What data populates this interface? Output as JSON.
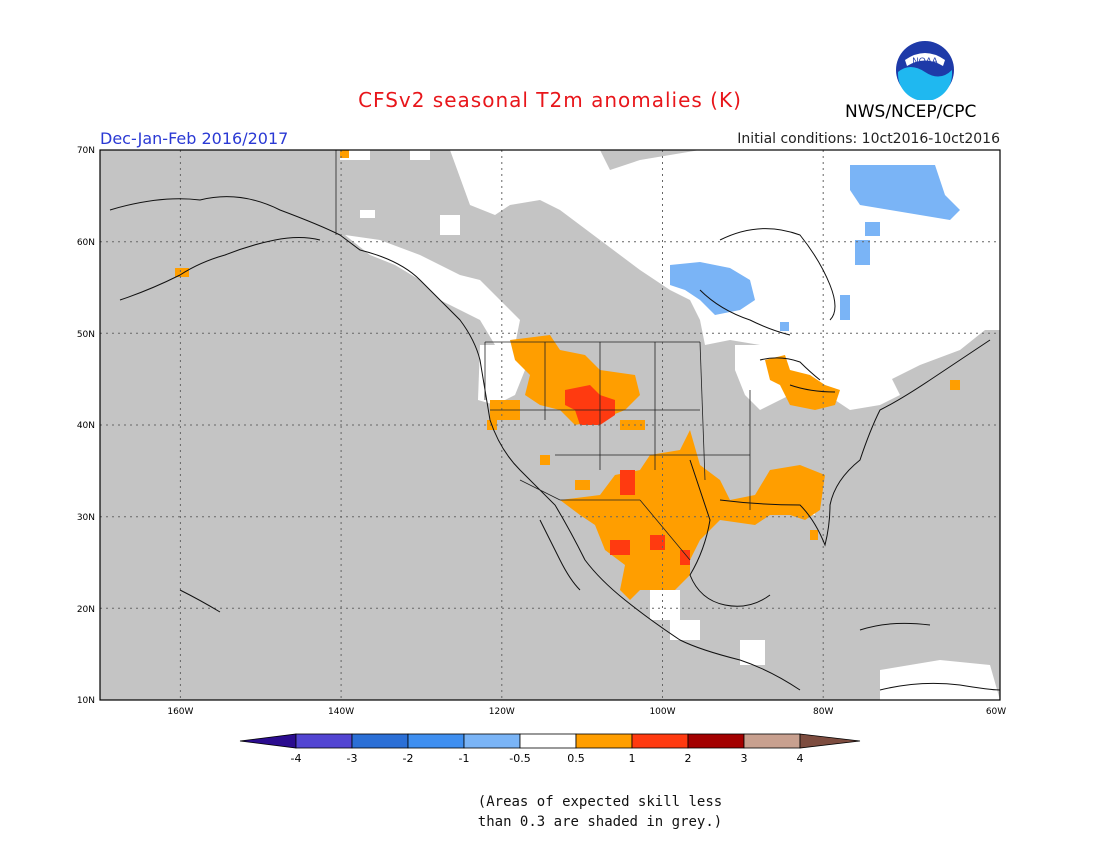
{
  "header": {
    "title": "CFSv2 seasonal T2m anomalies (K)",
    "agency": "NWS/NCEP/CPC",
    "period": "Dec-Jan-Feb 2016/2017",
    "initial_conditions": "Initial conditions: 10ct2016-10ct2016",
    "logo_text": "NOAA"
  },
  "map": {
    "lon_range": [
      -172,
      -60
    ],
    "lat_range": [
      10,
      70
    ],
    "lon_ticks": [
      "160W",
      "140W",
      "120W",
      "100W",
      "80W",
      "60W"
    ],
    "lat_ticks": [
      "70N",
      "60N",
      "50N",
      "40N",
      "30N",
      "20N",
      "10N"
    ],
    "colors": {
      "grey": "#c4c4c4",
      "white": "#ffffff",
      "orange": "#ff9e00",
      "red": "#ff3a10",
      "light_blue": "#7ab4f6",
      "mid_blue": "#3f8ff0"
    }
  },
  "legend": {
    "labels": [
      "-4",
      "-3",
      "-2",
      "-1",
      "-0.5",
      "0.5",
      "1",
      "2",
      "3",
      "4"
    ],
    "colors": [
      "#2b0c8f",
      "#5245d2",
      "#2b6fd6",
      "#3f8ff0",
      "#7ab4f6",
      "#ffffff",
      "#ff9e00",
      "#ff3a10",
      "#a30000",
      "#c8a08f",
      "#7d4c3f"
    ]
  },
  "note": {
    "line1": "(Areas of expected skill less",
    "line2": "than 0.3 are shaded in grey.)"
  }
}
